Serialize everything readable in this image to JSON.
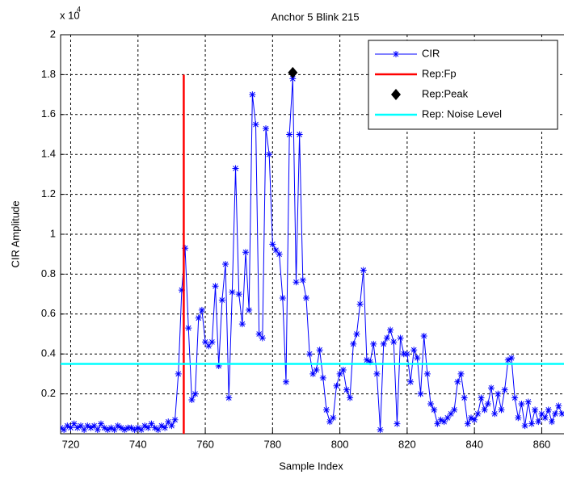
{
  "chart_data": {
    "type": "line",
    "title": "Anchor 5  Blink 215",
    "x_label": "Sample Index",
    "y_label": "CIR Amplitude",
    "y_multiplier": {
      "base": "x 10",
      "exponent": "4"
    },
    "xlim": [
      717,
      867
    ],
    "ylim": [
      0,
      2
    ],
    "xticks": [
      720,
      740,
      760,
      780,
      800,
      820,
      840,
      860
    ],
    "yticks": [
      0.2,
      0.4,
      0.6,
      0.8,
      1,
      1.2,
      1.4,
      1.6,
      1.8,
      2
    ],
    "grid": true,
    "legend": "top-right",
    "series": [
      {
        "name": "CIR",
        "color": "#0000ff",
        "marker": "asterisk",
        "line": true,
        "x": [
          717,
          718,
          719,
          720,
          721,
          722,
          723,
          724,
          725,
          726,
          727,
          728,
          729,
          730,
          731,
          732,
          733,
          734,
          735,
          736,
          737,
          738,
          739,
          740,
          741,
          742,
          743,
          744,
          745,
          746,
          747,
          748,
          749,
          750,
          751,
          752,
          753,
          754,
          755,
          756,
          757,
          758,
          759,
          760,
          761,
          762,
          763,
          764,
          765,
          766,
          767,
          768,
          769,
          770,
          771,
          772,
          773,
          774,
          775,
          776,
          777,
          778,
          779,
          780,
          781,
          782,
          783,
          784,
          785,
          786,
          787,
          788,
          789,
          790,
          791,
          792,
          793,
          794,
          795,
          796,
          797,
          798,
          799,
          800,
          801,
          802,
          803,
          804,
          805,
          806,
          807,
          808,
          809,
          810,
          811,
          812,
          813,
          814,
          815,
          816,
          817,
          818,
          819,
          820,
          821,
          822,
          823,
          824,
          825,
          826,
          827,
          828,
          829,
          830,
          831,
          832,
          833,
          834,
          835,
          836,
          837,
          838,
          839,
          840,
          841,
          842,
          843,
          844,
          845,
          846,
          847,
          848,
          849,
          850,
          851,
          852,
          853,
          854,
          855,
          856,
          857,
          858,
          859,
          860,
          861,
          862,
          863,
          864,
          865,
          866
        ],
        "values": [
          0.03,
          0.02,
          0.04,
          0.03,
          0.05,
          0.03,
          0.04,
          0.02,
          0.04,
          0.03,
          0.04,
          0.02,
          0.05,
          0.03,
          0.02,
          0.03,
          0.02,
          0.04,
          0.03,
          0.02,
          0.03,
          0.03,
          0.02,
          0.03,
          0.02,
          0.04,
          0.03,
          0.05,
          0.03,
          0.02,
          0.04,
          0.03,
          0.06,
          0.04,
          0.07,
          0.3,
          0.72,
          0.93,
          0.53,
          0.17,
          0.2,
          0.58,
          0.62,
          0.46,
          0.44,
          0.46,
          0.74,
          0.34,
          0.67,
          0.85,
          0.18,
          0.71,
          1.33,
          0.7,
          0.55,
          0.91,
          0.62,
          1.7,
          1.55,
          0.5,
          0.48,
          1.53,
          1.4,
          0.95,
          0.92,
          0.9,
          0.68,
          0.26,
          1.5,
          1.78,
          0.76,
          1.5,
          0.77,
          0.68,
          0.4,
          0.3,
          0.32,
          0.42,
          0.28,
          0.12,
          0.06,
          0.08,
          0.24,
          0.3,
          0.32,
          0.22,
          0.18,
          0.45,
          0.5,
          0.65,
          0.82,
          0.37,
          0.36,
          0.45,
          0.3,
          0.02,
          0.45,
          0.48,
          0.52,
          0.46,
          0.05,
          0.48,
          0.4,
          0.4,
          0.26,
          0.42,
          0.38,
          0.2,
          0.49,
          0.3,
          0.15,
          0.12,
          0.05,
          0.07,
          0.06,
          0.08,
          0.1,
          0.12,
          0.26,
          0.3,
          0.18,
          0.05,
          0.08,
          0.07,
          0.1,
          0.18,
          0.12,
          0.15,
          0.23,
          0.1,
          0.2,
          0.12,
          0.22,
          0.37,
          0.38,
          0.18,
          0.08,
          0.15,
          0.04,
          0.16,
          0.05,
          0.12,
          0.06,
          0.1,
          0.08,
          0.12,
          0.06,
          0.1,
          0.14,
          0.1
        ]
      },
      {
        "name": "Rep:Fp",
        "color": "#ff0000",
        "marker": "none",
        "line": true,
        "x": [
          753.6,
          753.6
        ],
        "values": [
          0,
          1.8
        ]
      },
      {
        "name": "Rep:Peak",
        "color": "#000000",
        "marker": "diamond",
        "line": false,
        "x": [
          786
        ],
        "values": [
          1.81
        ]
      },
      {
        "name": "Rep: Noise Level",
        "color": "#00ffff",
        "marker": "none",
        "line": true,
        "x": [
          717,
          867
        ],
        "values": [
          0.35,
          0.35
        ]
      }
    ]
  }
}
